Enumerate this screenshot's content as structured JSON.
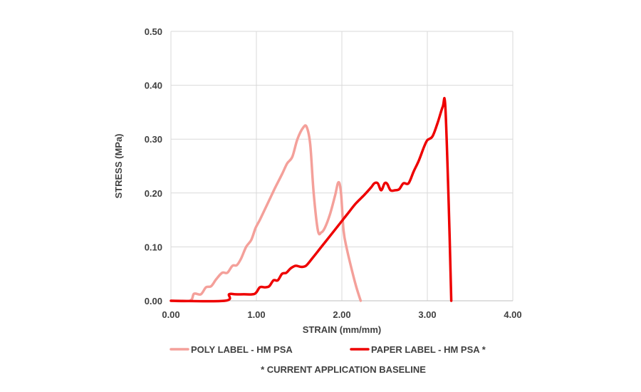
{
  "chart_data": {
    "type": "line",
    "xlabel": "STRAIN (mm/mm)",
    "ylabel": "STRESS (MPa)",
    "xlim": [
      0,
      4
    ],
    "ylim": [
      0,
      0.5
    ],
    "x_ticks": [
      "0.00",
      "1.00",
      "2.00",
      "3.00",
      "4.00"
    ],
    "y_ticks": [
      "0.00",
      "0.10",
      "0.20",
      "0.30",
      "0.40",
      "0.50"
    ],
    "grid": true,
    "legend_position": "bottom",
    "note": "* CURRENT APPLICATION  BASELINE",
    "series": [
      {
        "name": "POLY LABEL - HM PSA",
        "color": "#f4a09a",
        "points": [
          [
            0.0,
            0.0
          ],
          [
            0.22,
            0.0
          ],
          [
            0.27,
            0.013
          ],
          [
            0.35,
            0.012
          ],
          [
            0.41,
            0.025
          ],
          [
            0.47,
            0.027
          ],
          [
            0.53,
            0.04
          ],
          [
            0.6,
            0.052
          ],
          [
            0.66,
            0.052
          ],
          [
            0.72,
            0.065
          ],
          [
            0.77,
            0.066
          ],
          [
            0.82,
            0.078
          ],
          [
            0.88,
            0.1
          ],
          [
            0.94,
            0.113
          ],
          [
            0.99,
            0.135
          ],
          [
            1.04,
            0.15
          ],
          [
            1.1,
            0.17
          ],
          [
            1.16,
            0.19
          ],
          [
            1.22,
            0.21
          ],
          [
            1.3,
            0.235
          ],
          [
            1.36,
            0.255
          ],
          [
            1.42,
            0.267
          ],
          [
            1.48,
            0.3
          ],
          [
            1.55,
            0.322
          ],
          [
            1.59,
            0.322
          ],
          [
            1.63,
            0.29
          ],
          [
            1.67,
            0.2
          ],
          [
            1.72,
            0.13
          ],
          [
            1.76,
            0.127
          ],
          [
            1.8,
            0.135
          ],
          [
            1.86,
            0.16
          ],
          [
            1.92,
            0.195
          ],
          [
            1.96,
            0.22
          ],
          [
            1.99,
            0.2
          ],
          [
            2.02,
            0.13
          ],
          [
            2.06,
            0.095
          ],
          [
            2.12,
            0.055
          ],
          [
            2.17,
            0.025
          ],
          [
            2.22,
            0.0
          ]
        ]
      },
      {
        "name": "PAPER LABEL - HM PSA *",
        "color": "#ee0000",
        "points": [
          [
            0.0,
            0.0
          ],
          [
            0.63,
            0.0
          ],
          [
            0.68,
            0.012
          ],
          [
            0.75,
            0.012
          ],
          [
            0.85,
            0.012
          ],
          [
            0.98,
            0.013
          ],
          [
            1.04,
            0.025
          ],
          [
            1.1,
            0.025
          ],
          [
            1.15,
            0.027
          ],
          [
            1.2,
            0.038
          ],
          [
            1.25,
            0.038
          ],
          [
            1.3,
            0.05
          ],
          [
            1.35,
            0.052
          ],
          [
            1.4,
            0.06
          ],
          [
            1.46,
            0.065
          ],
          [
            1.52,
            0.063
          ],
          [
            1.58,
            0.065
          ],
          [
            1.66,
            0.08
          ],
          [
            1.76,
            0.1
          ],
          [
            1.86,
            0.12
          ],
          [
            1.96,
            0.14
          ],
          [
            2.06,
            0.16
          ],
          [
            2.16,
            0.18
          ],
          [
            2.26,
            0.196
          ],
          [
            2.34,
            0.21
          ],
          [
            2.38,
            0.218
          ],
          [
            2.42,
            0.218
          ],
          [
            2.46,
            0.205
          ],
          [
            2.5,
            0.218
          ],
          [
            2.53,
            0.217
          ],
          [
            2.57,
            0.205
          ],
          [
            2.62,
            0.205
          ],
          [
            2.67,
            0.207
          ],
          [
            2.72,
            0.218
          ],
          [
            2.78,
            0.218
          ],
          [
            2.84,
            0.24
          ],
          [
            2.9,
            0.26
          ],
          [
            2.96,
            0.285
          ],
          [
            3.0,
            0.298
          ],
          [
            3.06,
            0.305
          ],
          [
            3.12,
            0.33
          ],
          [
            3.18,
            0.36
          ],
          [
            3.21,
            0.362
          ],
          [
            3.25,
            0.18
          ],
          [
            3.28,
            0.0
          ]
        ]
      }
    ]
  }
}
